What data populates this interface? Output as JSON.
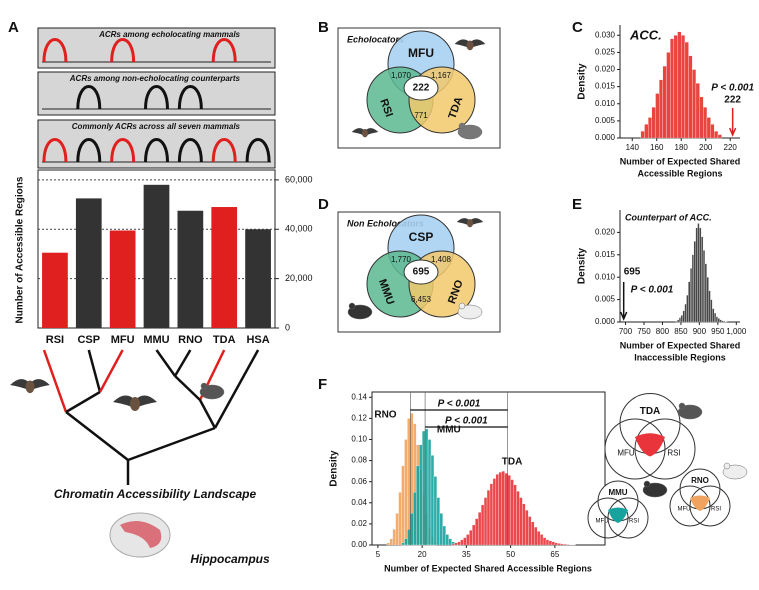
{
  "panel_labels": [
    "A",
    "B",
    "C",
    "D",
    "E",
    "F"
  ],
  "acr_tracks": [
    {
      "title": "ACRs among echolocating mammals"
    },
    {
      "title": "ACRs among non-echolocating counterparts"
    },
    {
      "title": "Commonly ACRs across all seven mammals"
    }
  ],
  "tree_caption": "Chromatin Accessibility Landscape",
  "brain_caption": "Hippocampus",
  "venn_b": {
    "title": "Echolocators",
    "sets": [
      "MFU",
      "RSI",
      "TDA"
    ],
    "regions": [
      "1,070",
      "1,167",
      "222",
      "771"
    ]
  },
  "venn_d": {
    "title": "Non Echolocators",
    "sets": [
      "CSP",
      "MMU",
      "RNO"
    ],
    "regions": [
      "1,770",
      "1,408",
      "695",
      "6,453"
    ]
  },
  "venn_f": [
    {
      "sets": [
        "TDA",
        "MFU",
        "RSI"
      ]
    },
    {
      "sets": [
        "MMU",
        "MFU",
        "RSI"
      ]
    },
    {
      "sets": [
        "RNO",
        "MFU",
        "RSI"
      ]
    }
  ],
  "chart_data": [
    {
      "type": "bar",
      "ylabel": "Number of Accessible Regions",
      "categories": [
        "RSI",
        "CSP",
        "MFU",
        "MMU",
        "RNO",
        "TDA",
        "HSA"
      ],
      "values": [
        30500,
        52500,
        39500,
        58000,
        47500,
        49000,
        40000
      ],
      "colors": [
        "#e0201e",
        "#333333",
        "#e0201e",
        "#333333",
        "#333333",
        "#e0201e",
        "#333333"
      ],
      "ylim": [
        0,
        64000
      ],
      "yticks": [
        0,
        {
          "value": 20000,
          "label": "20,000"
        },
        {
          "value": 40000,
          "label": "40,000"
        },
        {
          "value": 60000,
          "label": "60,000"
        }
      ],
      "grid": true
    },
    {
      "type": "histogram",
      "title": "ACC.",
      "ylabel": "Density",
      "xlabel": [
        "Number of Expected Shared",
        "Accessible Regions"
      ],
      "color": "#e8302c",
      "bins": [
        147,
        150,
        153,
        156,
        159,
        162,
        165,
        168,
        171,
        174,
        177,
        180,
        183,
        186,
        189,
        192,
        195,
        198,
        201,
        204,
        207,
        210,
        213
      ],
      "values": [
        0.002,
        0.004,
        0.006,
        0.009,
        0.013,
        0.017,
        0.021,
        0.025,
        0.029,
        0.03,
        0.031,
        0.03,
        0.028,
        0.024,
        0.02,
        0.016,
        0.012,
        0.009,
        0.006,
        0.004,
        0.002,
        0.001
      ],
      "xlim": [
        130,
        228
      ],
      "xticks": [
        140,
        160,
        180,
        200,
        220
      ],
      "ylim": [
        0,
        0.033
      ],
      "yticks": [
        {
          "value": 0,
          "label": "0.000"
        },
        0.005,
        {
          "value": 0.01,
          "label": "0.010"
        },
        0.015,
        {
          "value": 0.02,
          "label": "0.020"
        },
        0.025,
        {
          "value": 0.03,
          "label": "0.030"
        }
      ],
      "p_label": "P < 0.001",
      "observed": 222
    },
    {
      "type": "histogram",
      "title": "Counterpart of ACC.",
      "ylabel": "Density",
      "xlabel": [
        "Number of Expected Shared",
        "Inaccessible Regions"
      ],
      "color": "#333333",
      "bins": [
        835,
        840,
        845,
        850,
        855,
        860,
        865,
        870,
        875,
        880,
        885,
        890,
        895,
        900,
        905,
        910,
        915,
        920,
        925,
        930,
        935,
        940,
        945,
        950,
        955,
        960,
        965,
        970,
        975
      ],
      "values": [
        0.0002,
        0.0005,
        0.001,
        0.0015,
        0.0025,
        0.004,
        0.006,
        0.009,
        0.012,
        0.015,
        0.018,
        0.021,
        0.022,
        0.021,
        0.019,
        0.016,
        0.013,
        0.01,
        0.007,
        0.005,
        0.003,
        0.002,
        0.0012,
        0.0008,
        0.0005,
        0.0003,
        0.0002,
        0.0001
      ],
      "xlim": [
        685,
        1010
      ],
      "xticks": [
        700,
        750,
        800,
        850,
        900,
        950,
        {
          "value": 1000,
          "label": "1,000"
        }
      ],
      "ylim": [
        0,
        0.025
      ],
      "yticks": [
        {
          "value": 0,
          "label": "0.000"
        },
        0.005,
        {
          "value": 0.01,
          "label": "0.010"
        },
        0.015,
        {
          "value": 0.02,
          "label": "0.020"
        }
      ],
      "p_label": "P < 0.001",
      "observed": 695
    },
    {
      "type": "multi_histogram",
      "ylabel": "Density",
      "xlabel": "Number of Expected Shared Accessible Regions",
      "series": [
        {
          "name": "RNO",
          "color": "#f0a35e",
          "bins": [
            8,
            9,
            10,
            11,
            12,
            13,
            14,
            15,
            16,
            17,
            18,
            19,
            20,
            21,
            22,
            23,
            24,
            25
          ],
          "values": [
            0.002,
            0.006,
            0.015,
            0.03,
            0.05,
            0.075,
            0.1,
            0.12,
            0.125,
            0.115,
            0.095,
            0.07,
            0.048,
            0.03,
            0.016,
            0.008,
            0.003
          ]
        },
        {
          "name": "MMU",
          "color": "#17a39d",
          "bins": [
            13,
            14,
            15,
            16,
            17,
            18,
            19,
            20,
            21,
            22,
            23,
            24,
            25,
            26,
            27,
            28,
            29,
            30,
            31,
            32,
            33
          ],
          "values": [
            0.002,
            0.006,
            0.015,
            0.03,
            0.05,
            0.075,
            0.095,
            0.108,
            0.11,
            0.1,
            0.085,
            0.065,
            0.045,
            0.03,
            0.018,
            0.01,
            0.006,
            0.003,
            0.002,
            0.001
          ]
        },
        {
          "name": "TDA",
          "color": "#e8343a",
          "bins": [
            30,
            31,
            32,
            33,
            34,
            35,
            36,
            37,
            38,
            39,
            40,
            41,
            42,
            43,
            44,
            45,
            46,
            47,
            48,
            49,
            50,
            51,
            52,
            53,
            54,
            55,
            56,
            57,
            58,
            59,
            60,
            61,
            62,
            63,
            64,
            65,
            66,
            67,
            68,
            69,
            70,
            71,
            72
          ],
          "values": [
            0.001,
            0.002,
            0.003,
            0.005,
            0.007,
            0.01,
            0.014,
            0.019,
            0.025,
            0.031,
            0.038,
            0.045,
            0.052,
            0.058,
            0.063,
            0.067,
            0.069,
            0.07,
            0.068,
            0.066,
            0.062,
            0.057,
            0.051,
            0.045,
            0.039,
            0.033,
            0.027,
            0.022,
            0.017,
            0.013,
            0.01,
            0.007,
            0.005,
            0.004,
            0.003,
            0.002,
            0.0015,
            0.001,
            0.0008,
            0.0005,
            0.0003,
            0.0002
          ]
        }
      ],
      "xlim": [
        3,
        82
      ],
      "xticks": [
        5,
        20,
        35,
        50,
        65
      ],
      "ylim": [
        0,
        0.145
      ],
      "yticks": [
        {
          "value": 0,
          "label": "0.00"
        },
        0.02,
        0.04,
        0.06,
        0.08,
        {
          "value": 0.1,
          "label": "0.10"
        },
        0.12,
        0.14
      ],
      "p_labels": [
        "P < 0.001",
        "P < 0.001"
      ]
    }
  ]
}
